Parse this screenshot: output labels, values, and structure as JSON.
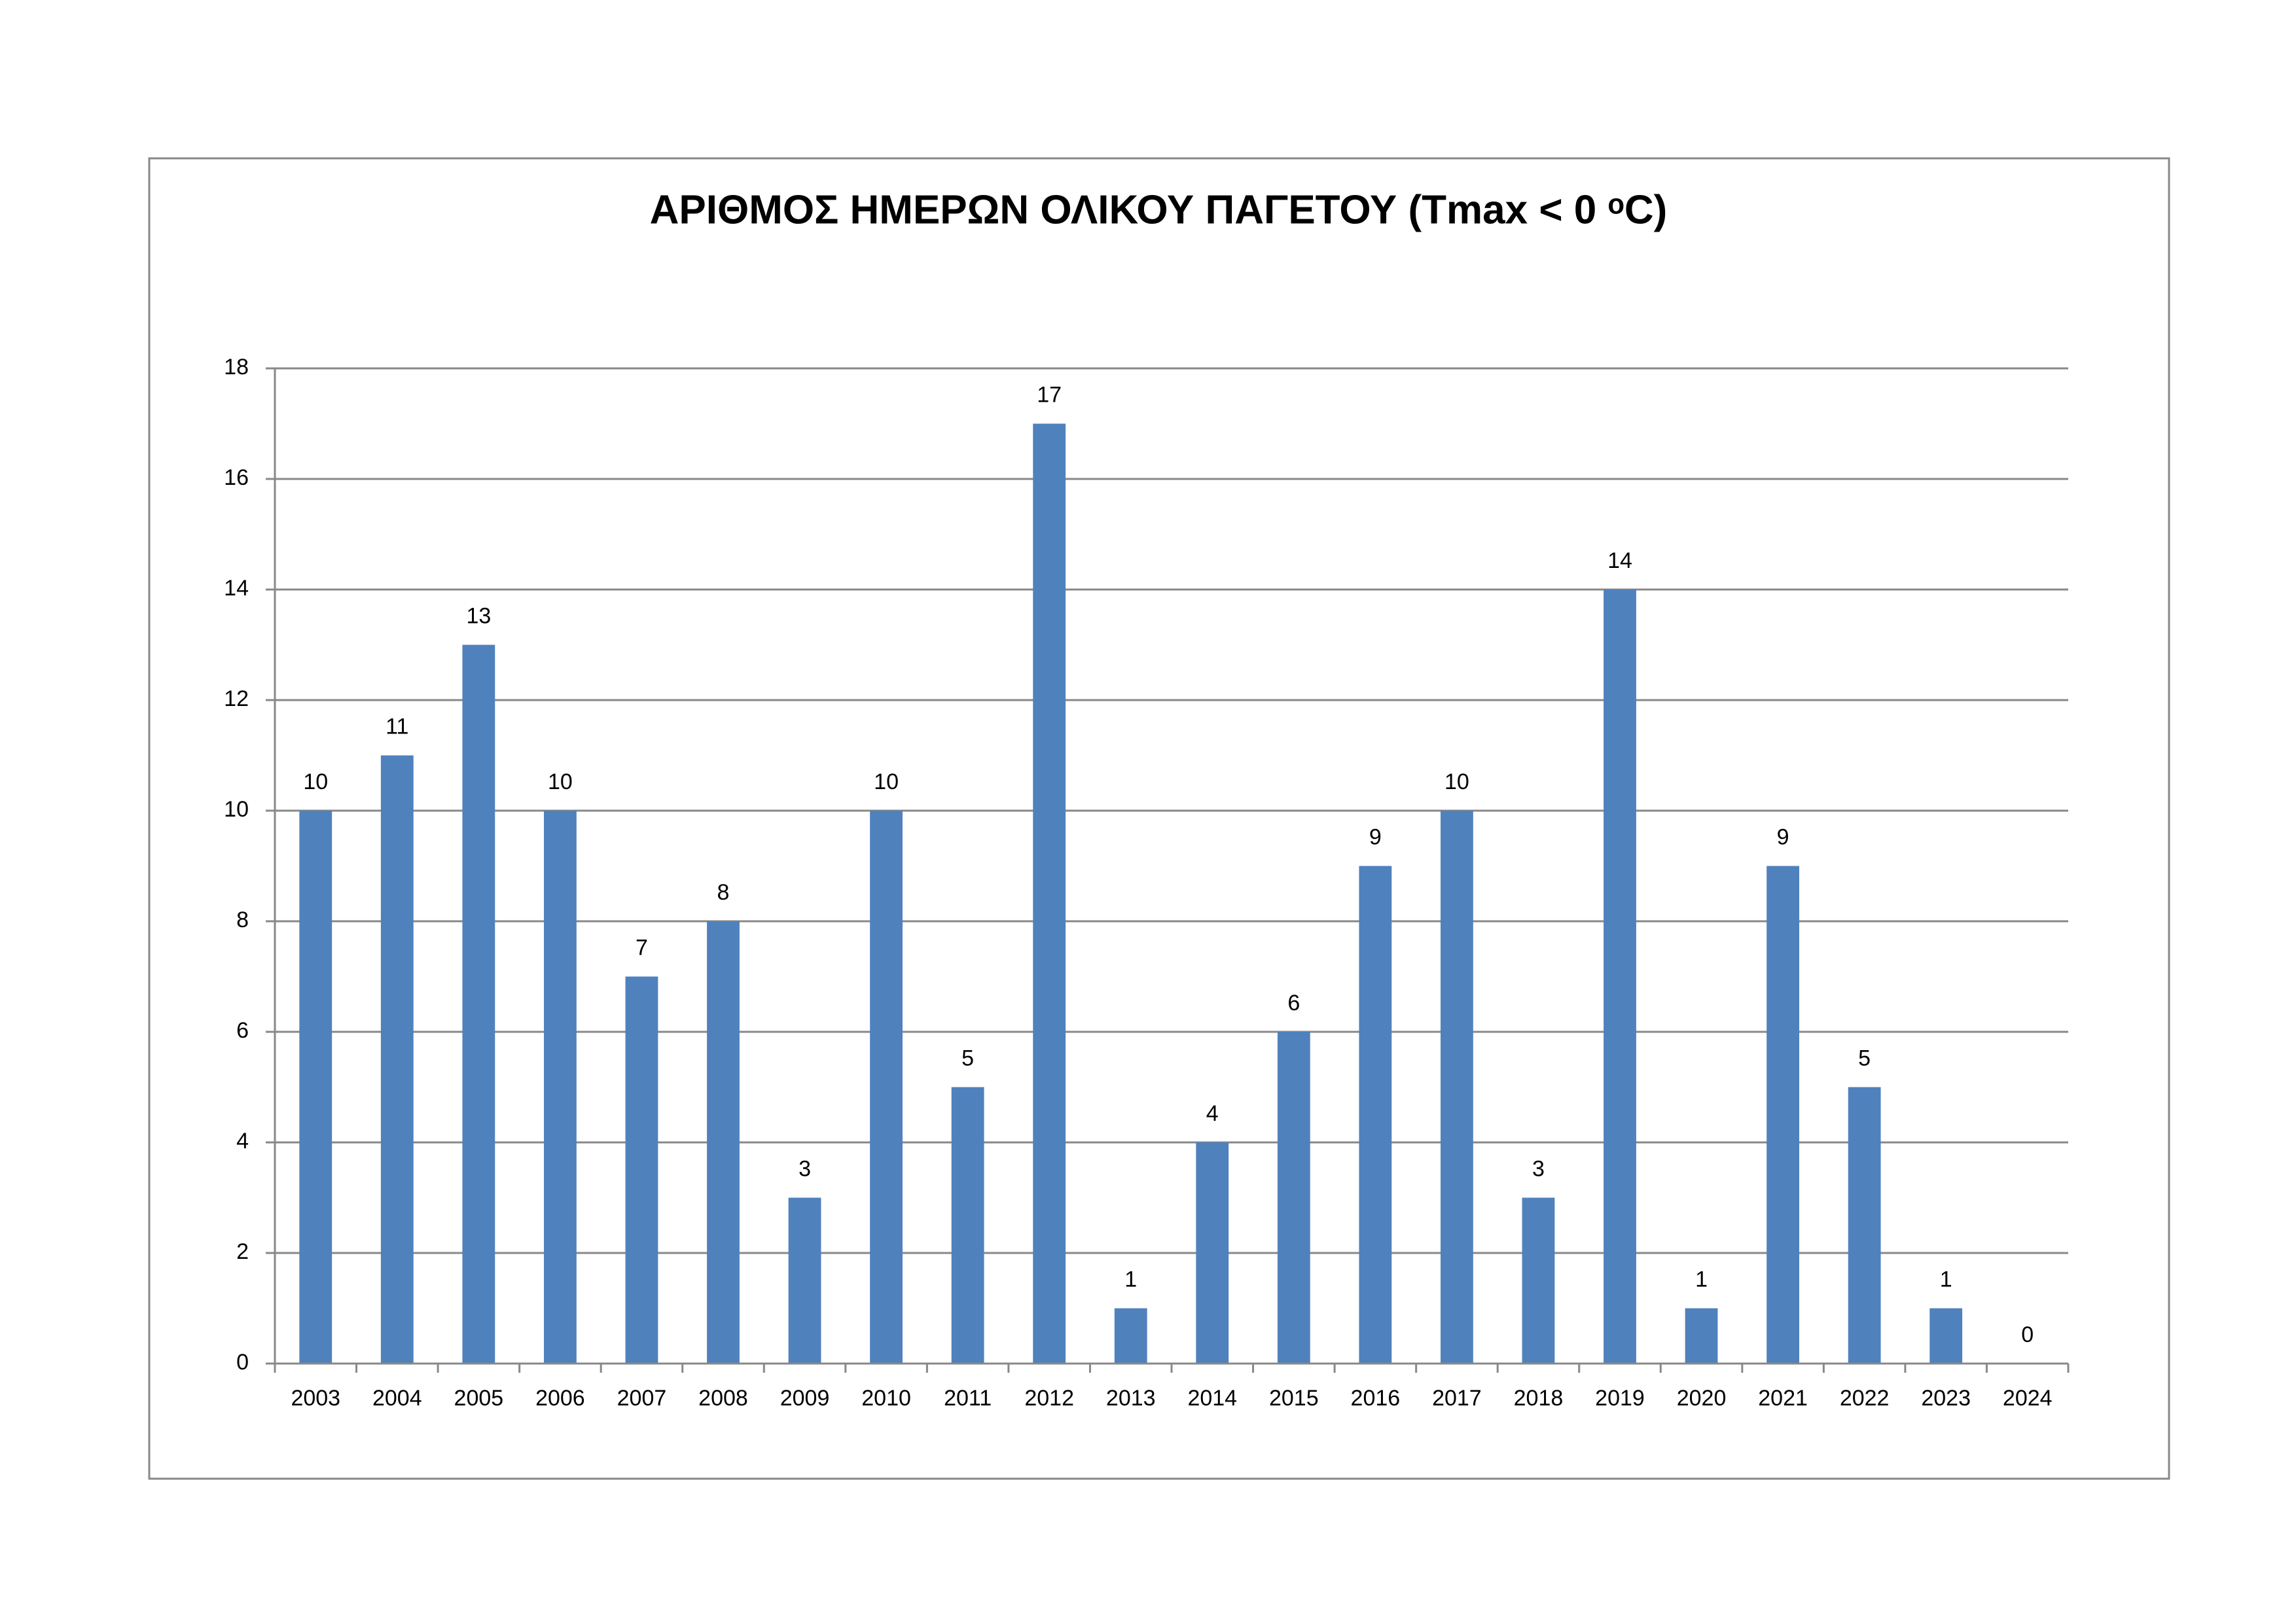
{
  "chart_data": {
    "type": "bar",
    "title": "ΑΡΙΘΜΟΣ ΗΜΕΡΩΝ ΟΛΙΚΟΥ ΠΑΓΕΤΟΥ (Tmax < 0 ᵒC)",
    "categories": [
      "2003",
      "2004",
      "2005",
      "2006",
      "2007",
      "2008",
      "2009",
      "2010",
      "2011",
      "2012",
      "2013",
      "2014",
      "2015",
      "2016",
      "2017",
      "2018",
      "2019",
      "2020",
      "2021",
      "2022",
      "2023",
      "2024"
    ],
    "values": [
      10,
      11,
      13,
      10,
      7,
      8,
      3,
      10,
      5,
      17,
      1,
      4,
      6,
      9,
      10,
      3,
      14,
      1,
      9,
      5,
      1,
      0
    ],
    "color": "#4f81bd",
    "ylim": [
      0,
      18
    ],
    "yticks": [
      0,
      2,
      4,
      6,
      8,
      10,
      12,
      14,
      16,
      18
    ],
    "grid": true
  }
}
